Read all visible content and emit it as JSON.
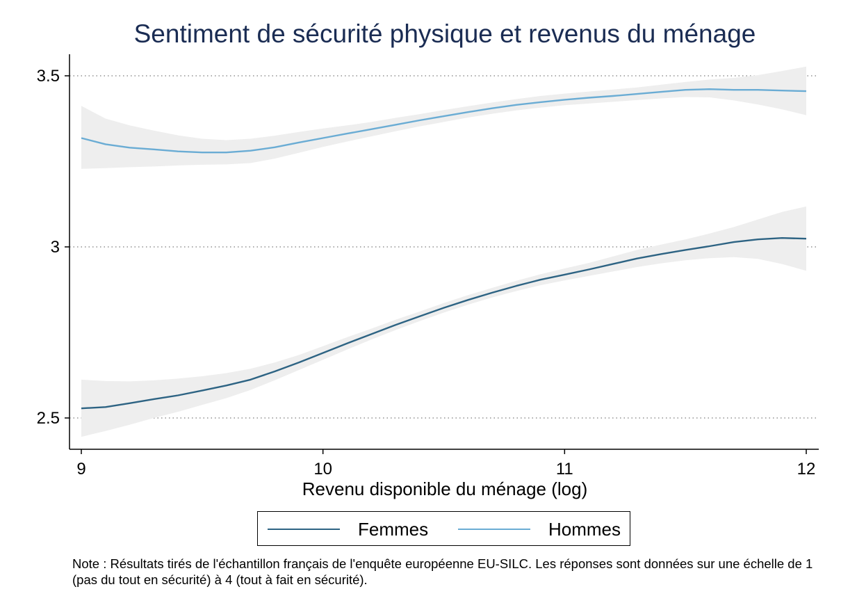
{
  "chart_data": {
    "type": "line",
    "title": "Sentiment de sécurité physique et revenus du ménage",
    "xlabel": "Revenu disponible du ménage (log)",
    "ylabel": "",
    "xlim": [
      9,
      12
    ],
    "ylim": [
      2.41,
      3.6
    ],
    "xticks": [
      "9",
      "10",
      "11",
      "12"
    ],
    "yticks": [
      "2.5",
      "3",
      "3.5"
    ],
    "grid": "horizontal dotted",
    "legend_position": "bottom",
    "series": [
      {
        "name": "Femmes",
        "color": "#2d6383",
        "x": [
          9.0,
          9.1,
          9.2,
          9.3,
          9.4,
          9.5,
          9.6,
          9.7,
          9.8,
          9.9,
          10.0,
          10.1,
          10.2,
          10.3,
          10.4,
          10.5,
          10.6,
          10.7,
          10.8,
          10.9,
          11.0,
          11.1,
          11.2,
          11.3,
          11.4,
          11.5,
          11.6,
          11.7,
          11.8,
          11.9,
          12.0
        ],
        "y": [
          2.528,
          2.532,
          2.543,
          2.555,
          2.566,
          2.58,
          2.595,
          2.612,
          2.636,
          2.662,
          2.69,
          2.718,
          2.745,
          2.772,
          2.797,
          2.822,
          2.845,
          2.866,
          2.886,
          2.904,
          2.919,
          2.934,
          2.95,
          2.966,
          2.979,
          2.991,
          3.002,
          3.014,
          3.022,
          3.026,
          3.024
        ],
        "ci_low": [
          2.445,
          2.462,
          2.48,
          2.5,
          2.518,
          2.538,
          2.558,
          2.582,
          2.61,
          2.64,
          2.67,
          2.7,
          2.729,
          2.757,
          2.783,
          2.808,
          2.831,
          2.852,
          2.871,
          2.888,
          2.902,
          2.915,
          2.928,
          2.941,
          2.952,
          2.961,
          2.967,
          2.97,
          2.965,
          2.95,
          2.93
        ],
        "ci_high": [
          2.612,
          2.608,
          2.607,
          2.61,
          2.615,
          2.622,
          2.631,
          2.644,
          2.662,
          2.684,
          2.71,
          2.736,
          2.761,
          2.787,
          2.811,
          2.836,
          2.859,
          2.88,
          2.901,
          2.92,
          2.937,
          2.953,
          2.972,
          2.991,
          3.007,
          3.022,
          3.039,
          3.058,
          3.08,
          3.102,
          3.118
        ]
      },
      {
        "name": "Hommes",
        "color": "#6aacd4",
        "x": [
          9.0,
          9.1,
          9.2,
          9.3,
          9.4,
          9.5,
          9.6,
          9.7,
          9.8,
          9.9,
          10.0,
          10.1,
          10.2,
          10.3,
          10.4,
          10.5,
          10.6,
          10.7,
          10.8,
          10.9,
          11.0,
          11.1,
          11.2,
          11.3,
          11.4,
          11.5,
          11.6,
          11.7,
          11.8,
          11.9,
          12.0
        ],
        "y": [
          3.318,
          3.3,
          3.29,
          3.285,
          3.279,
          3.276,
          3.276,
          3.281,
          3.291,
          3.305,
          3.318,
          3.331,
          3.344,
          3.357,
          3.37,
          3.382,
          3.394,
          3.405,
          3.415,
          3.423,
          3.43,
          3.436,
          3.441,
          3.447,
          3.453,
          3.459,
          3.461,
          3.459,
          3.459,
          3.457,
          3.455
        ],
        "ci_low": [
          3.228,
          3.23,
          3.233,
          3.235,
          3.238,
          3.24,
          3.241,
          3.245,
          3.258,
          3.275,
          3.292,
          3.308,
          3.323,
          3.338,
          3.352,
          3.365,
          3.378,
          3.389,
          3.399,
          3.407,
          3.414,
          3.419,
          3.424,
          3.429,
          3.434,
          3.438,
          3.437,
          3.428,
          3.416,
          3.402,
          3.385
        ],
        "ci_high": [
          3.412,
          3.375,
          3.355,
          3.34,
          3.326,
          3.316,
          3.312,
          3.316,
          3.325,
          3.336,
          3.346,
          3.355,
          3.365,
          3.377,
          3.388,
          3.4,
          3.411,
          3.422,
          3.432,
          3.441,
          3.448,
          3.454,
          3.46,
          3.466,
          3.474,
          3.482,
          3.489,
          3.494,
          3.502,
          3.514,
          3.527
        ]
      }
    ]
  },
  "legend": {
    "items": [
      {
        "label": "Femmes",
        "color": "#2d6383"
      },
      {
        "label": "Hommes",
        "color": "#6aacd4"
      }
    ]
  },
  "note": "Note : Résultats tirés de l'échantillon français de l'enquête européenne EU-SILC. Les réponses sont données sur une échelle de 1 (pas du tout en sécurité) à 4 (tout à fait en sécurité)."
}
